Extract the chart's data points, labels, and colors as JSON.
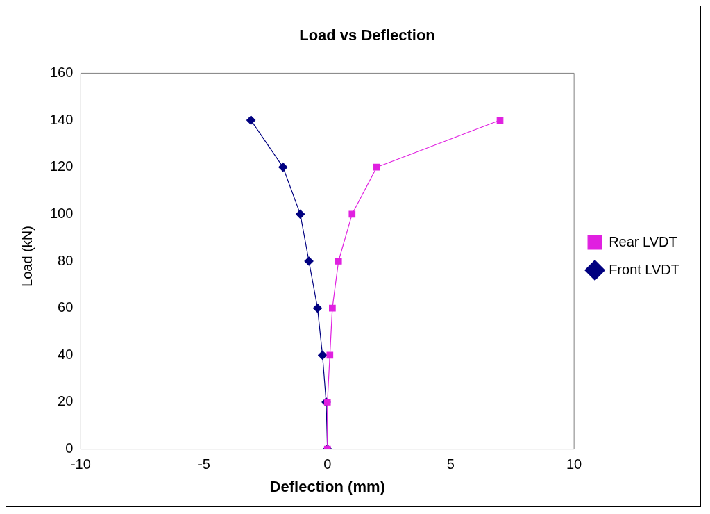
{
  "chart_data": {
    "type": "line",
    "title": "Load vs Deflection",
    "xlabel": "Deflection (mm)",
    "ylabel": "Load (kN)",
    "xlim": [
      -10,
      10
    ],
    "xticks": [
      -10,
      -5,
      0,
      5,
      10
    ],
    "ylim": [
      0,
      160
    ],
    "yticks": [
      0,
      20,
      40,
      60,
      80,
      100,
      120,
      140,
      160
    ],
    "grid": false,
    "legend": "right",
    "series": [
      {
        "name": "Front LVDT",
        "color": "#000080",
        "marker": "diamond",
        "x": [
          0,
          -0.05,
          -0.2,
          -0.4,
          -0.75,
          -1.1,
          -1.8,
          -3.1
        ],
        "values": [
          0,
          20,
          40,
          60,
          80,
          100,
          120,
          140
        ]
      },
      {
        "name": "Rear LVDT",
        "color": "#e020e0",
        "marker": "square",
        "x": [
          0,
          0,
          0.1,
          0.2,
          0.45,
          1.0,
          2.0,
          7.0
        ],
        "values": [
          0,
          20,
          40,
          60,
          80,
          100,
          120,
          140
        ]
      }
    ]
  }
}
